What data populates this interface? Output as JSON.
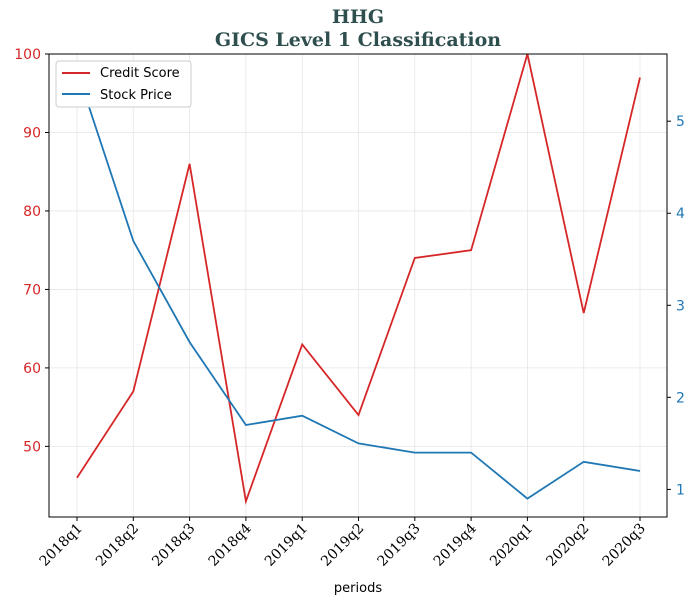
{
  "chart_data": {
    "type": "line",
    "title": "HHG",
    "subtitle": "GICS Level 1 Classification",
    "xlabel": "periods",
    "categories": [
      "2018q1",
      "2018q2",
      "2018q3",
      "2018q4",
      "2019q1",
      "2019q2",
      "2019q3",
      "2019q4",
      "2020q1",
      "2020q2",
      "2020q3"
    ],
    "series": [
      {
        "name": "Credit Score",
        "axis": "left",
        "color": "#d62728",
        "values": [
          46,
          57,
          86,
          43,
          63,
          54,
          74,
          75,
          100,
          67,
          97
        ]
      },
      {
        "name": "Stock Price",
        "axis": "right",
        "color": "#1f77b4",
        "values": [
          5.55,
          3.7,
          2.6,
          1.7,
          1.8,
          1.5,
          1.4,
          1.4,
          0.9,
          1.3,
          1.2
        ]
      }
    ],
    "ylim_left": [
      41,
      100
    ],
    "yticks_left": [
      50,
      60,
      70,
      80,
      90,
      100
    ],
    "ylim_right": [
      0.7,
      5.73
    ],
    "yticks_right": [
      1,
      2,
      3,
      4,
      5
    ],
    "grid": true,
    "legend_position": "top-left"
  }
}
